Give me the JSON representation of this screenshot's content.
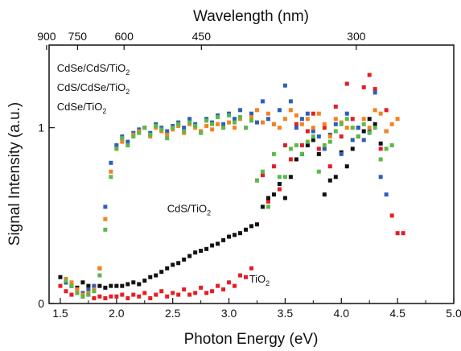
{
  "chart_data": {
    "type": "scatter",
    "xlabel": "Photon Energy (eV)",
    "ylabel": "Signal Intensity (a.u.)",
    "top_axis_label": "Wavelength (nm)",
    "xlim": [
      1.4,
      5.0
    ],
    "ylim": [
      0,
      1.47
    ],
    "x_ticks": [
      "1.5",
      "2.0",
      "2.5",
      "3.0",
      "3.5",
      "4.0",
      "4.5",
      "5.0"
    ],
    "x_minor_ticks": [
      1.75,
      2.25,
      2.75,
      3.25,
      3.75,
      4.25,
      4.75
    ],
    "y_ticks": [
      "0",
      "1"
    ],
    "top_ticks": [
      {
        "label": "900",
        "energy": 1.378
      },
      {
        "label": "750",
        "energy": 1.653
      },
      {
        "label": "600",
        "energy": 2.067
      },
      {
        "label": "450",
        "energy": 2.755
      },
      {
        "label": "300",
        "energy": 4.133
      }
    ],
    "annotations": [
      {
        "main": "CdSe/CdS/TiO",
        "sub": "2",
        "x": 1.47,
        "y": 1.32
      },
      {
        "main": "CdS/CdSe/TiO",
        "sub": "2",
        "x": 1.47,
        "y": 1.21
      },
      {
        "main": "CdSe/TiO",
        "sub": "2",
        "x": 1.47,
        "y": 1.1
      },
      {
        "main": "CdS/TiO",
        "sub": "2",
        "x": 2.45,
        "y": 0.52
      },
      {
        "main": "TiO",
        "sub": "2",
        "x": 3.18,
        "y": 0.12
      }
    ],
    "series": [
      {
        "color": "#e41e26",
        "x": [
          1.5,
          1.55,
          1.6,
          1.65,
          1.7,
          1.75,
          1.8,
          1.85,
          1.9,
          1.95,
          2.0,
          2.05,
          2.1,
          2.15,
          2.2,
          2.25,
          2.3,
          2.35,
          2.4,
          2.45,
          2.5,
          2.55,
          2.6,
          2.65,
          2.7,
          2.75,
          2.8,
          2.85,
          2.9,
          2.95,
          3.0,
          3.05,
          3.1,
          3.15,
          3.2,
          3.25,
          3.3,
          3.35,
          3.4,
          3.45,
          3.5,
          3.55,
          3.6,
          3.65,
          3.7,
          3.75,
          3.8,
          3.85,
          3.9,
          3.95,
          4.0,
          4.05,
          4.1,
          4.15,
          4.2,
          4.25,
          4.3,
          4.35,
          4.4,
          4.45,
          4.5,
          4.55
        ],
        "y": [
          0.1,
          0.07,
          0.05,
          0.06,
          0.04,
          0.05,
          0.03,
          0.04,
          0.03,
          0.04,
          0.04,
          0.05,
          0.03,
          0.05,
          0.04,
          0.06,
          0.03,
          0.05,
          0.07,
          0.04,
          0.06,
          0.05,
          0.08,
          0.05,
          0.06,
          0.09,
          0.06,
          0.07,
          0.1,
          0.08,
          0.12,
          0.1,
          0.16,
          0.15,
          0.2,
          0.7,
          0.73,
          0.58,
          0.78,
          0.65,
          0.9,
          0.82,
          1.02,
          0.9,
          0.98,
          1.08,
          0.88,
          1.0,
          0.78,
          1.12,
          0.95,
          1.25,
          1.05,
          0.95,
          1.23,
          1.3,
          1.22,
          0.88,
          1.1,
          0.5,
          0.4,
          0.4
        ]
      },
      {
        "color": "#111111",
        "x": [
          1.5,
          1.55,
          1.6,
          1.65,
          1.7,
          1.75,
          1.8,
          1.85,
          1.9,
          1.95,
          2.0,
          2.05,
          2.1,
          2.15,
          2.2,
          2.25,
          2.3,
          2.35,
          2.4,
          2.45,
          2.5,
          2.55,
          2.6,
          2.65,
          2.7,
          2.75,
          2.8,
          2.85,
          2.9,
          2.95,
          3.0,
          3.05,
          3.1,
          3.15,
          3.2,
          3.25,
          3.3,
          3.35,
          3.4,
          3.45,
          3.5,
          3.55,
          3.6,
          3.65,
          3.7,
          3.75,
          3.8,
          3.85,
          3.9,
          3.95,
          4.0,
          4.05,
          4.1,
          4.15,
          4.2,
          4.25,
          4.3,
          4.35,
          4.4
        ],
        "y": [
          0.15,
          0.12,
          0.1,
          0.09,
          0.12,
          0.1,
          0.09,
          0.1,
          0.09,
          0.1,
          0.1,
          0.1,
          0.11,
          0.12,
          0.11,
          0.13,
          0.15,
          0.16,
          0.18,
          0.2,
          0.22,
          0.23,
          0.25,
          0.27,
          0.29,
          0.3,
          0.31,
          0.33,
          0.34,
          0.36,
          0.38,
          0.39,
          0.4,
          0.42,
          0.44,
          0.45,
          0.55,
          0.6,
          0.62,
          0.68,
          0.6,
          0.72,
          0.82,
          0.85,
          0.9,
          0.93,
          0.85,
          0.62,
          0.7,
          0.72,
          0.86,
          0.78,
          0.88,
          1.0,
          0.98,
          1.05,
          1.02,
          0.91,
          0.98
        ]
      },
      {
        "color": "#2e5fb8",
        "x": [
          1.55,
          1.6,
          1.65,
          1.7,
          1.75,
          1.8,
          1.85,
          1.9,
          1.95,
          2.0,
          2.05,
          2.1,
          2.15,
          2.2,
          2.25,
          2.3,
          2.35,
          2.4,
          2.45,
          2.5,
          2.55,
          2.6,
          2.65,
          2.7,
          2.75,
          2.8,
          2.85,
          2.9,
          2.95,
          3.0,
          3.05,
          3.1,
          3.15,
          3.2,
          3.25,
          3.3,
          3.35,
          3.4,
          3.45,
          3.5,
          3.55,
          3.6,
          3.65,
          3.7,
          3.75,
          3.8,
          3.85,
          3.9,
          3.95,
          4.0,
          4.05,
          4.1,
          4.15,
          4.2,
          4.25,
          4.3,
          4.35,
          4.4
        ],
        "y": [
          0.12,
          0.1,
          0.08,
          0.06,
          0.08,
          0.1,
          0.2,
          0.55,
          0.8,
          0.9,
          0.95,
          0.92,
          0.97,
          0.99,
          1.0,
          0.97,
          1.02,
          1.0,
          0.98,
          1.01,
          1.03,
          1.0,
          1.05,
          1.02,
          0.98,
          1.05,
          1.03,
          1.07,
          1.02,
          1.08,
          1.05,
          1.1,
          1.0,
          1.08,
          1.03,
          1.15,
          1.05,
          1.02,
          1.1,
          1.24,
          1.15,
          1.0,
          1.05,
          1.08,
          0.98,
          0.95,
          0.88,
          0.96,
          1.02,
          0.85,
          1.08,
          0.93,
          1.0,
          0.93,
          0.98,
          1.2,
          0.72,
          0.62
        ]
      },
      {
        "color": "#f58220",
        "x": [
          1.55,
          1.6,
          1.65,
          1.7,
          1.75,
          1.8,
          1.85,
          1.9,
          1.95,
          2.0,
          2.05,
          2.1,
          2.15,
          2.2,
          2.25,
          2.3,
          2.35,
          2.4,
          2.45,
          2.5,
          2.55,
          2.6,
          2.65,
          2.7,
          2.75,
          2.8,
          2.85,
          2.9,
          2.95,
          3.0,
          3.05,
          3.1,
          3.15,
          3.2,
          3.25,
          3.3,
          3.35,
          3.4,
          3.45,
          3.5,
          3.55,
          3.6,
          3.65,
          3.7,
          3.75,
          3.8,
          3.85,
          3.9,
          3.95,
          4.0,
          4.05,
          4.1,
          4.15,
          4.2,
          4.25,
          4.3,
          4.35,
          4.4,
          4.45,
          4.5
        ],
        "y": [
          0.14,
          0.12,
          0.08,
          0.05,
          0.06,
          0.08,
          0.2,
          0.48,
          0.75,
          0.88,
          0.92,
          0.9,
          0.96,
          0.98,
          1.0,
          0.95,
          1.0,
          0.98,
          0.96,
          0.99,
          1.01,
          0.97,
          1.02,
          1.0,
          0.98,
          1.01,
          0.99,
          1.02,
          1.0,
          1.03,
          1.0,
          1.05,
          1.0,
          1.06,
          1.1,
          1.03,
          1.08,
          1.02,
          1.0,
          1.05,
          1.1,
          1.07,
          1.02,
          1.05,
          1.0,
          1.08,
          1.02,
          0.95,
          1.05,
          1.03,
          1.0,
          1.0,
          0.95,
          1.05,
          1.0,
          1.1,
          1.08,
          0.98,
          1.02,
          1.05
        ]
      },
      {
        "color": "#5cb84a",
        "x": [
          1.55,
          1.6,
          1.65,
          1.7,
          1.75,
          1.8,
          1.85,
          1.9,
          1.95,
          2.0,
          2.05,
          2.1,
          2.15,
          2.2,
          2.25,
          2.3,
          2.35,
          2.4,
          2.45,
          2.5,
          2.55,
          2.6,
          2.65,
          2.7,
          2.75,
          2.8,
          2.85,
          2.9,
          2.95,
          3.0,
          3.05,
          3.1,
          3.15,
          3.2,
          3.25,
          3.3,
          3.35,
          3.4,
          3.45,
          3.5,
          3.55,
          3.6,
          3.65,
          3.7,
          3.75,
          3.8,
          3.85,
          3.9,
          3.95,
          4.0,
          4.05,
          4.1,
          4.15,
          4.2,
          4.25,
          4.3,
          4.35,
          4.4,
          4.45
        ],
        "y": [
          0.13,
          0.1,
          0.06,
          0.04,
          0.05,
          0.07,
          0.16,
          0.42,
          0.72,
          0.88,
          0.94,
          0.9,
          0.95,
          0.97,
          1.0,
          0.96,
          1.01,
          0.99,
          0.94,
          1.0,
          1.02,
          0.98,
          1.03,
          1.01,
          0.97,
          1.04,
          1.02,
          1.06,
          1.0,
          1.07,
          1.03,
          1.06,
          1.0,
          1.04,
          0.7,
          0.75,
          0.55,
          0.85,
          0.72,
          0.72,
          0.88,
          0.9,
          0.85,
          0.92,
          0.95,
          0.75,
          0.9,
          0.92,
          0.98,
          1.02,
          1.05,
          1.0,
          0.95,
          1.02,
          0.97,
          1.0,
          0.82,
          0.88,
          0.9
        ]
      }
    ]
  }
}
